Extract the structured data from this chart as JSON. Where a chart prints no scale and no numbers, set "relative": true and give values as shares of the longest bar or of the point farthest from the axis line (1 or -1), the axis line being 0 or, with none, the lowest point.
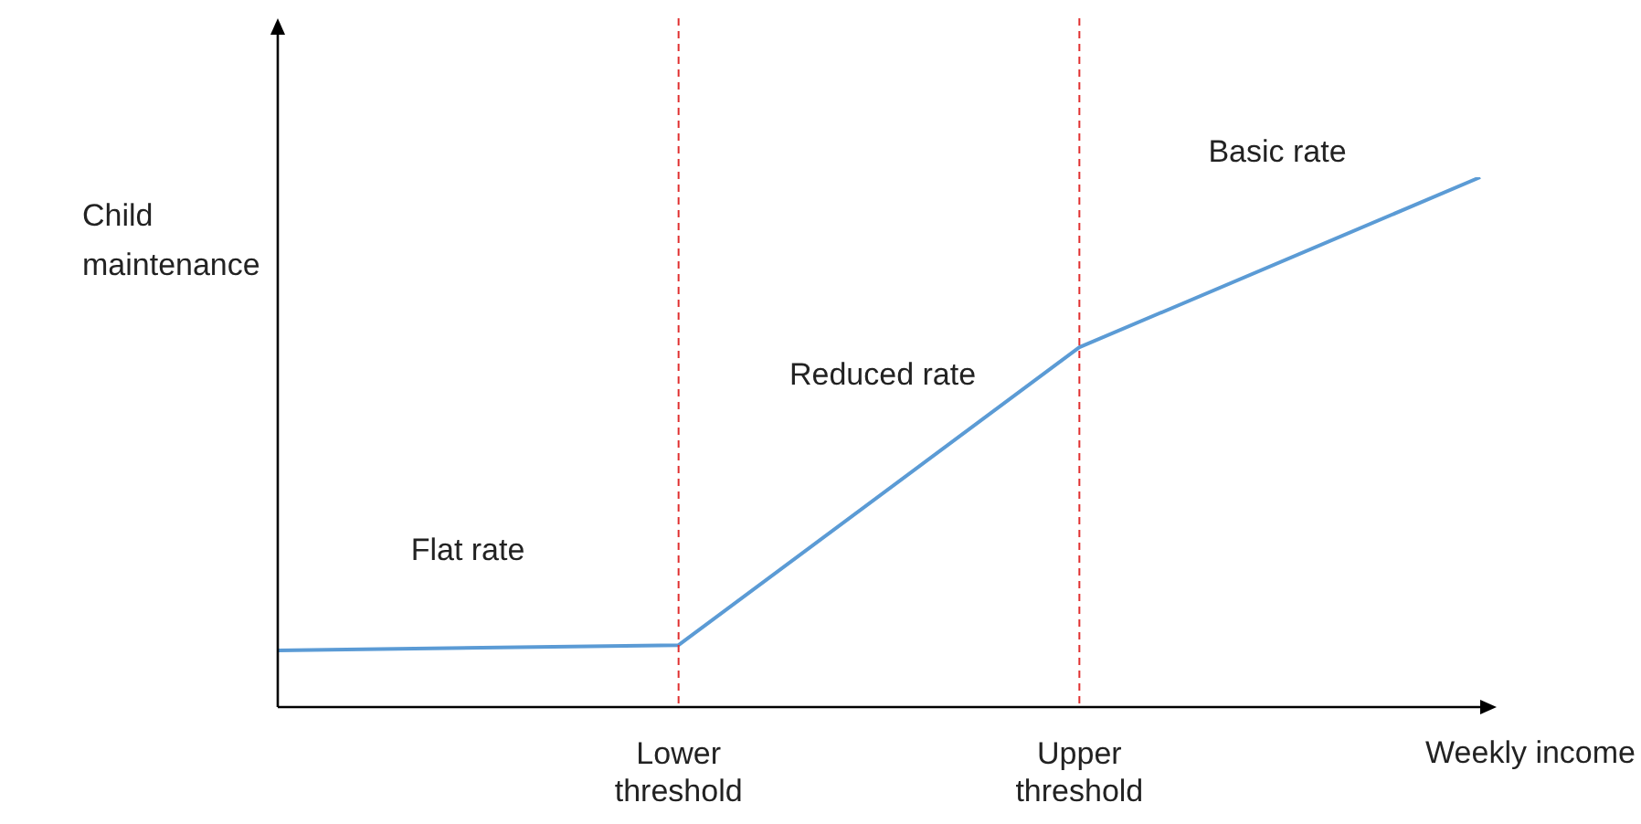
{
  "chart_data": {
    "type": "line",
    "relative": true,
    "categories": [
      null,
      "Lower threshold",
      "Upper threshold",
      null
    ],
    "series": [
      {
        "color": "#5b9bd5",
        "values": [
          0.107,
          0.117,
          0.679,
          1
        ]
      }
    ],
    "xlabel": "Weekly income",
    "ylabel": "Child maintenance",
    "annotations": [
      "Flat rate",
      "Reduced rate",
      "Basic rate"
    ],
    "ref_lines": [
      {
        "axis": "x",
        "value": "Lower threshold",
        "color": "#e03030",
        "line_style": "dashed"
      },
      {
        "axis": "x",
        "value": "Upper threshold",
        "color": "#e03030",
        "line_style": "dashed"
      }
    ],
    "grid": false,
    "legend": false,
    "marker": "none",
    "line_style": "solid"
  }
}
